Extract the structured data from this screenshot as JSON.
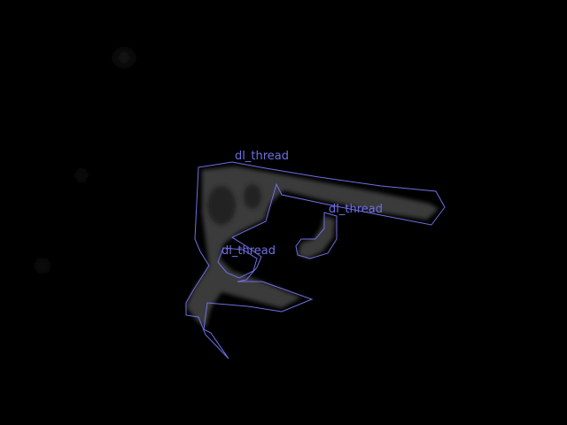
{
  "image": {
    "background_color": "#000000",
    "object_color": "#3a3a3a"
  },
  "annotations": {
    "stroke_color": "#6f6fe6",
    "regions": [
      {
        "label": "dl_thread"
      },
      {
        "label": "dl_thread"
      },
      {
        "label": "dl_thread"
      }
    ]
  }
}
